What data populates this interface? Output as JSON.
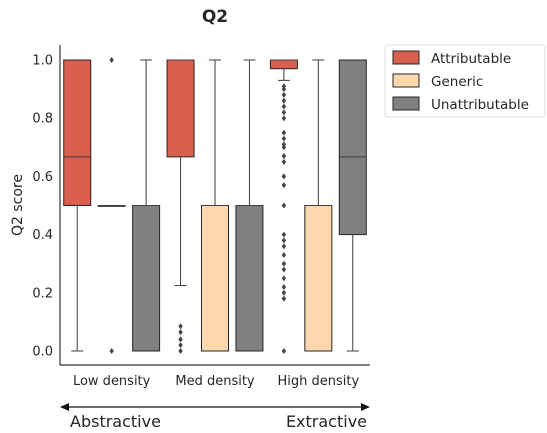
{
  "chart_data": {
    "type": "boxplot",
    "title": "Q2",
    "ylabel": "Q2 score",
    "xlabel": "",
    "ylim": [
      -0.05,
      1.05
    ],
    "yticks": [
      0.0,
      0.2,
      0.4,
      0.6,
      0.8,
      1.0
    ],
    "ytick_labels": [
      "0.0",
      "0.2",
      "0.4",
      "0.6",
      "0.8",
      "1.0"
    ],
    "grid": false,
    "legend_position": "outside-top-right",
    "categories": [
      "Low density",
      "Med density",
      "High density"
    ],
    "series": [
      {
        "name": "Attributable",
        "color": "#d9604f",
        "boxes": [
          {
            "q1": 0.5,
            "median": 0.667,
            "q3": 1.0,
            "whisker_low": 0.0,
            "whisker_high": 1.0,
            "outliers": []
          },
          {
            "q1": 0.667,
            "median": 1.0,
            "q3": 1.0,
            "whisker_low": 0.225,
            "whisker_high": 1.0,
            "outliers": [
              0.0,
              0.02,
              0.04,
              0.065,
              0.085
            ]
          },
          {
            "q1": 0.97,
            "median": 1.0,
            "q3": 1.0,
            "whisker_low": 0.93,
            "whisker_high": 1.0,
            "outliers": [
              0.0,
              0.18,
              0.2,
              0.22,
              0.25,
              0.28,
              0.3,
              0.33,
              0.36,
              0.38,
              0.4,
              0.5,
              0.57,
              0.6,
              0.65,
              0.67,
              0.7,
              0.71,
              0.73,
              0.75,
              0.8,
              0.82,
              0.84,
              0.86,
              0.88,
              0.9,
              0.91
            ]
          }
        ]
      },
      {
        "name": "Generic",
        "color": "#fdd8ae",
        "boxes": [
          {
            "q1": 0.5,
            "median": 0.5,
            "q3": 0.5,
            "whisker_low": 0.5,
            "whisker_high": 0.5,
            "outliers": [
              0.0,
              1.0
            ]
          },
          {
            "q1": 0.0,
            "median": 0.5,
            "q3": 0.5,
            "whisker_low": 0.0,
            "whisker_high": 1.0,
            "outliers": []
          },
          {
            "q1": 0.0,
            "median": 0.5,
            "q3": 0.5,
            "whisker_low": 0.0,
            "whisker_high": 1.0,
            "outliers": []
          }
        ]
      },
      {
        "name": "Unattributable",
        "color": "#808080",
        "boxes": [
          {
            "q1": 0.0,
            "median": 0.5,
            "q3": 0.5,
            "whisker_low": 0.0,
            "whisker_high": 1.0,
            "outliers": []
          },
          {
            "q1": 0.0,
            "median": 0.5,
            "q3": 0.5,
            "whisker_low": 0.0,
            "whisker_high": 1.0,
            "outliers": []
          },
          {
            "q1": 0.4,
            "median": 0.667,
            "q3": 1.0,
            "whisker_low": 0.0,
            "whisker_high": 1.0,
            "outliers": []
          }
        ]
      }
    ],
    "arrow": {
      "left_label": "Abstractive",
      "right_label": "Extractive"
    }
  }
}
